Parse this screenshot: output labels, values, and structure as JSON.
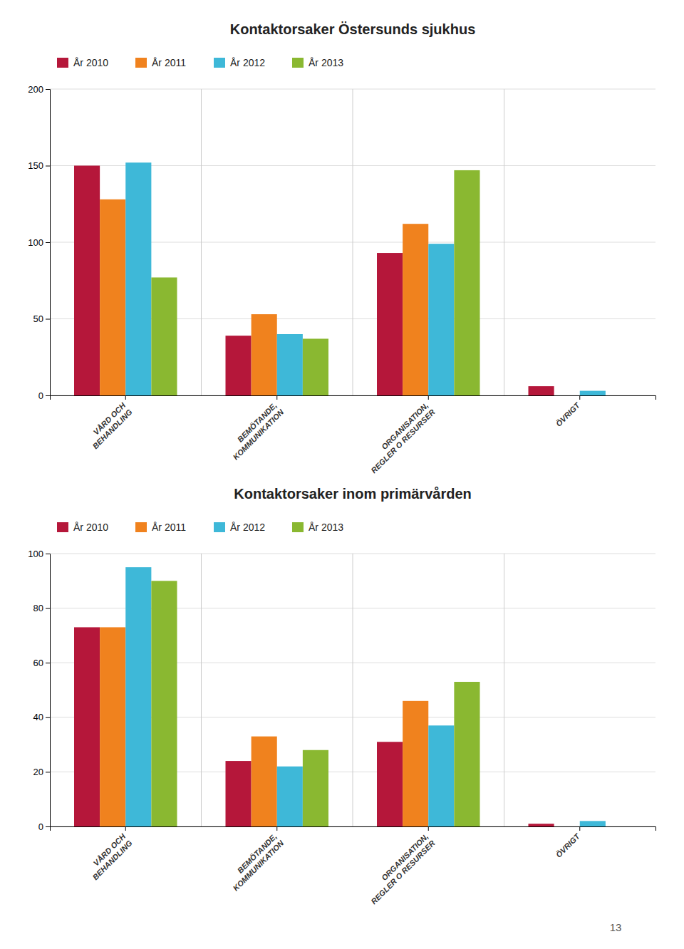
{
  "chart_data": [
    {
      "type": "bar",
      "title": "Kontaktorsaker Östersunds sjukhus",
      "categories": [
        "VÅRD OCH\nBEHANDLING",
        "BEMÖTANDE,\nKOMMUNIKATION",
        "ORGANISATION,\nREGLER O RESURSER",
        "ÖVRIGT"
      ],
      "series": [
        {
          "name": "År 2010",
          "color": "#b5173a",
          "values": [
            150,
            39,
            93,
            6
          ]
        },
        {
          "name": "År 2011",
          "color": "#f0821e",
          "values": [
            128,
            53,
            112,
            0
          ]
        },
        {
          "name": "År 2012",
          "color": "#3eb8d8",
          "values": [
            152,
            40,
            99,
            3
          ]
        },
        {
          "name": "År 2013",
          "color": "#8ab831",
          "values": [
            77,
            37,
            147,
            0
          ]
        }
      ],
      "ylim": [
        0,
        200
      ],
      "yticks": [
        0,
        50,
        100,
        150,
        200
      ],
      "grid": true,
      "legend": "top"
    },
    {
      "type": "bar",
      "title": "Kontaktorsaker inom primärvården",
      "categories": [
        "VÅRD OCH\nBEHANDLING",
        "BEMÖTANDE,\nKOMMUNIKATION",
        "ORGANISATION,\nREGLER O RESURSER",
        "ÖVRIGT"
      ],
      "series": [
        {
          "name": "År 2010",
          "color": "#b5173a",
          "values": [
            73,
            24,
            31,
            1
          ]
        },
        {
          "name": "År 2011",
          "color": "#f0821e",
          "values": [
            73,
            33,
            46,
            0
          ]
        },
        {
          "name": "År 2012",
          "color": "#3eb8d8",
          "values": [
            95,
            22,
            37,
            2
          ]
        },
        {
          "name": "År 2013",
          "color": "#8ab831",
          "values": [
            90,
            28,
            53,
            0
          ]
        }
      ],
      "ylim": [
        0,
        100
      ],
      "yticks": [
        0,
        20,
        40,
        60,
        80,
        100
      ],
      "grid": true,
      "legend": "top",
      "annotations": [
        "13"
      ]
    }
  ]
}
